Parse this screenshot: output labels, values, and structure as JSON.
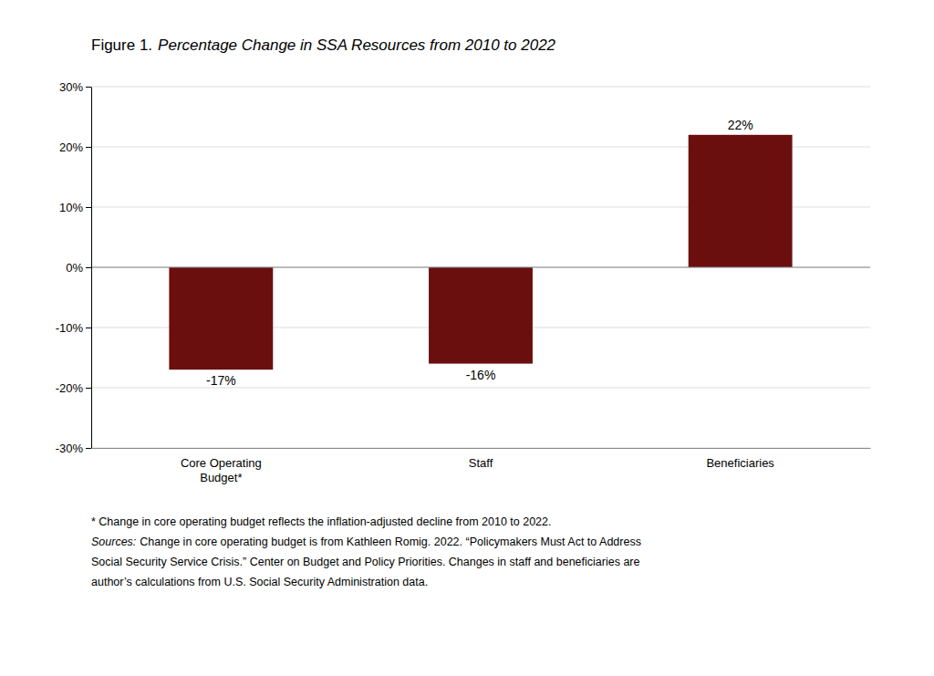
{
  "chart_data": {
    "type": "bar",
    "title": "Figure 1.",
    "subtitle": "Percentage Change in SSA Resources from 2010 to 2022",
    "categories": [
      "Core Operating\nBudget*",
      "Staff",
      "Beneficiaries"
    ],
    "values": [
      -17,
      -16,
      22
    ],
    "value_labels": [
      "-17%",
      "-16%",
      "22%"
    ],
    "data_labels": true,
    "color": "#6B0E0E",
    "ylim": [
      -30,
      30
    ],
    "yticks": [
      {
        "value": -30,
        "label": "-30%"
      },
      {
        "value": -20,
        "label": "-20%"
      },
      {
        "value": -10,
        "label": "-10%"
      },
      {
        "value": 0,
        "label": "0%"
      },
      {
        "value": 10,
        "label": "10%"
      },
      {
        "value": 20,
        "label": "20%"
      },
      {
        "value": 30,
        "label": "30%"
      }
    ],
    "grid": true,
    "annotations": [
      [
        "* Change in core operating budget reflects the inflation-adjusted decline from 2010 to 2022."
      ],
      [
        "Sources:",
        "Change in core operating budget is from Kathleen Romig. 2022. “Policymakers Must Act to Address"
      ],
      [
        "Social Security Service Crisis.” Center on Budget and Policy Priorities.  Changes in staff and beneficiaries are"
      ],
      [
        "author’s calculations from U.S. Social Security Administration data."
      ]
    ]
  }
}
